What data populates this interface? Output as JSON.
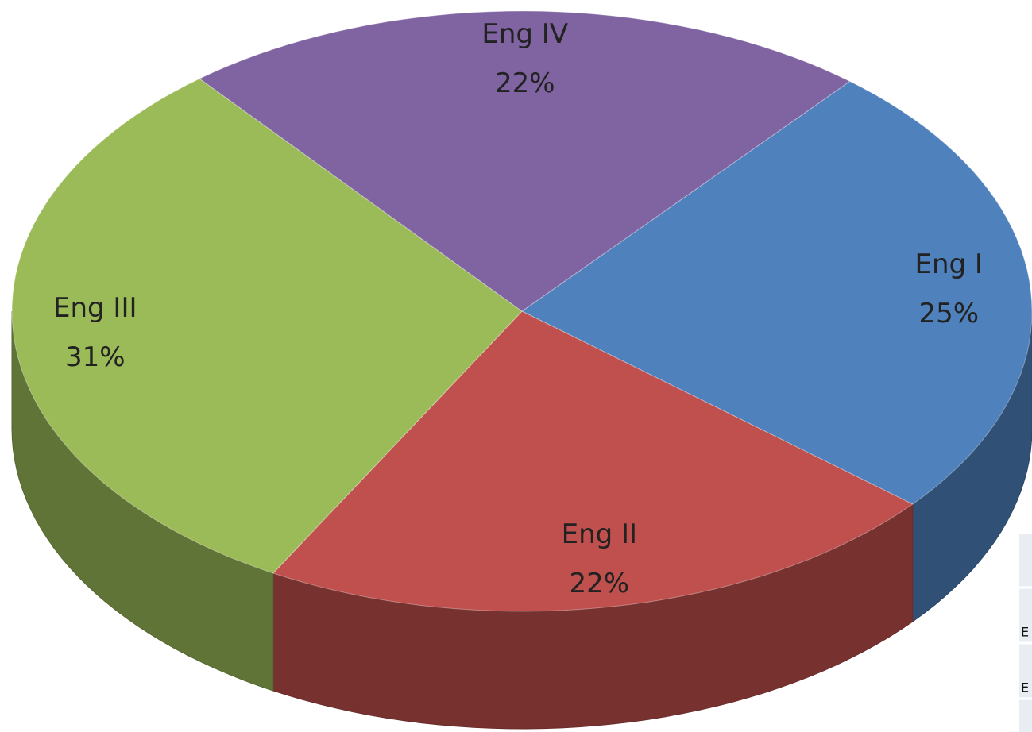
{
  "chart_data": {
    "type": "pie",
    "categories": [
      "Eng I",
      "Eng II",
      "Eng III",
      "Eng IV"
    ],
    "values": [
      25,
      22,
      31,
      22
    ],
    "value_labels": [
      "25%",
      "22%",
      "31%",
      "22%"
    ],
    "colors": [
      "#4f81bd",
      "#c0504d",
      "#9bbb59",
      "#8064a2"
    ]
  },
  "overlay_cells": [
    "E",
    "E"
  ]
}
